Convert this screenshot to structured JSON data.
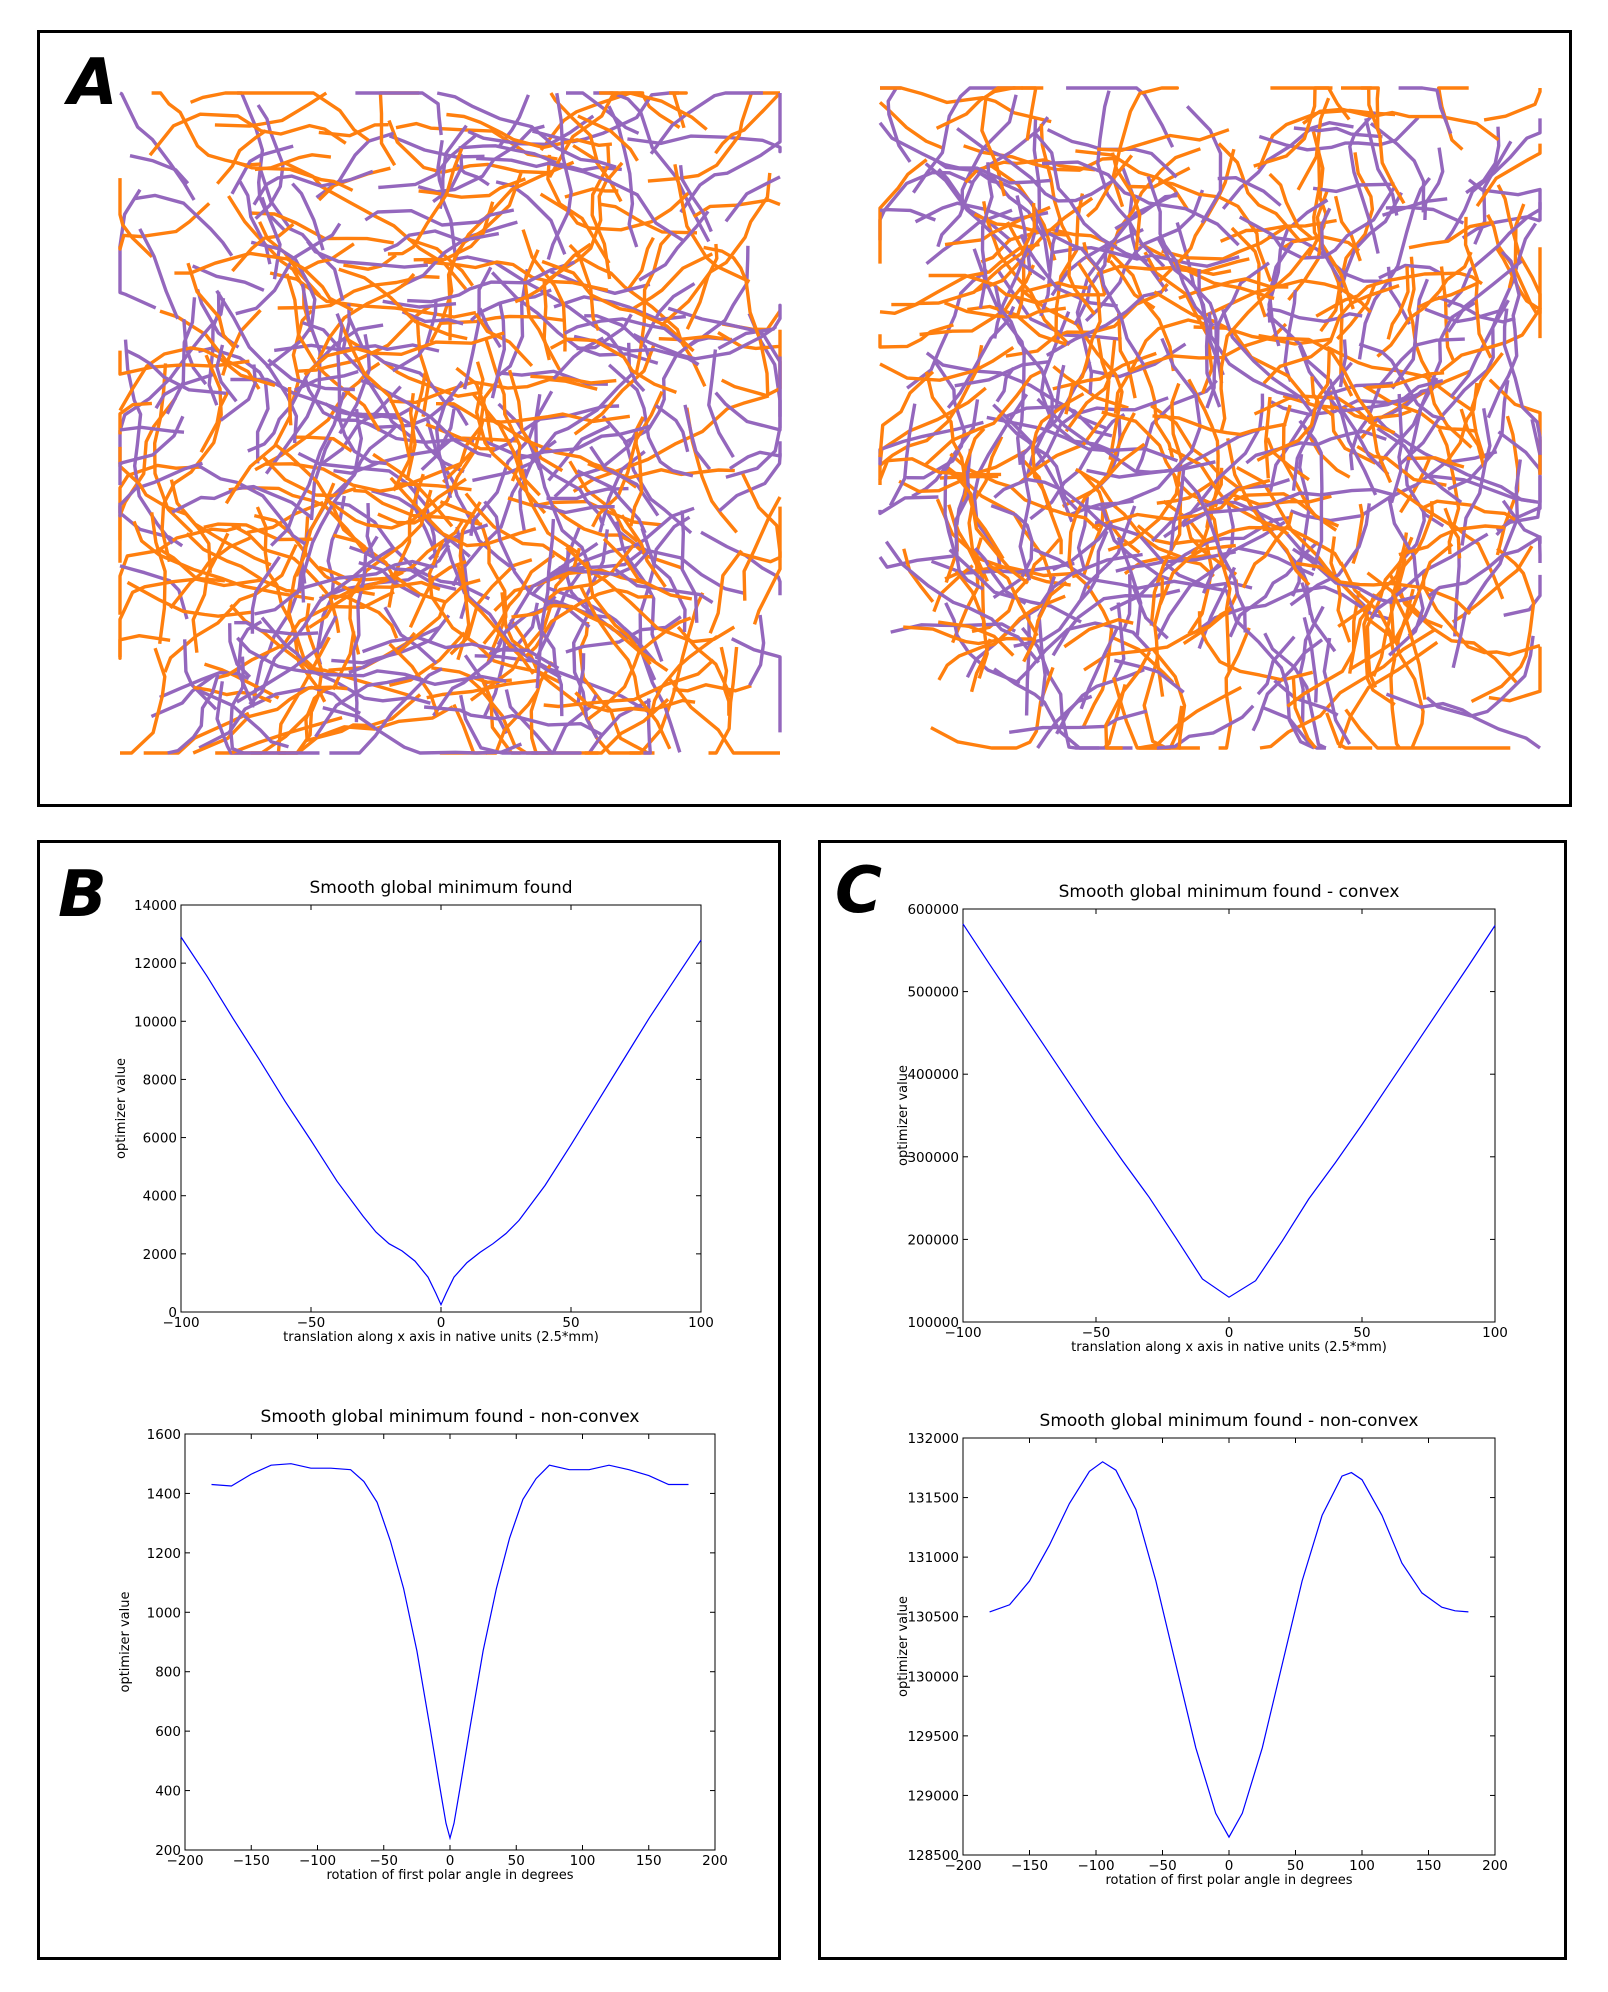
{
  "panels": {
    "a": {
      "label": "A"
    },
    "b": {
      "label": "B"
    },
    "c": {
      "label": "C"
    }
  },
  "colors": {
    "fiber_orange": "#ff7f0e",
    "fiber_purple": "#9467bd",
    "line_blue": "#0000ff"
  },
  "icons": {
    "panel_a": "tractography-fiber-bundles-image"
  },
  "chart_data": [
    {
      "id": "b_top",
      "type": "line",
      "title": "Smooth global minimum found",
      "xlabel": "translation along x axis in native units (2.5*mm)",
      "ylabel": "optimizer value",
      "xlim": [
        -100,
        100
      ],
      "ylim": [
        0,
        14000
      ],
      "xticks": [
        -100,
        -50,
        0,
        50,
        100
      ],
      "yticks": [
        0,
        2000,
        4000,
        6000,
        8000,
        10000,
        12000,
        14000
      ],
      "grid": false,
      "series": [
        {
          "x": [
            -100,
            -90,
            -80,
            -70,
            -60,
            -50,
            -40,
            -30,
            -25,
            -20,
            -15,
            -10,
            -5,
            -2,
            0,
            2,
            5,
            10,
            15,
            20,
            25,
            30,
            40,
            50,
            60,
            70,
            80,
            90,
            100
          ],
          "values": [
            12900,
            11550,
            10100,
            8700,
            7250,
            5900,
            4500,
            3300,
            2750,
            2350,
            2100,
            1750,
            1200,
            650,
            250,
            650,
            1200,
            1700,
            2050,
            2350,
            2700,
            3150,
            4350,
            5750,
            7200,
            8650,
            10100,
            11450,
            12800
          ]
        }
      ]
    },
    {
      "id": "b_bottom",
      "type": "line",
      "title": "Smooth global minimum found - non-convex",
      "xlabel": "rotation of first polar angle in degrees",
      "ylabel": "optimizer value",
      "xlim": [
        -200,
        200
      ],
      "ylim": [
        200,
        1600
      ],
      "xticks": [
        -200,
        -150,
        -100,
        -50,
        0,
        50,
        100,
        150,
        200
      ],
      "yticks": [
        200,
        400,
        600,
        800,
        1000,
        1200,
        1400,
        1600
      ],
      "grid": false,
      "series": [
        {
          "x": [
            -180,
            -165,
            -150,
            -135,
            -120,
            -105,
            -90,
            -75,
            -65,
            -55,
            -45,
            -35,
            -25,
            -15,
            -8,
            -3,
            0,
            3,
            8,
            15,
            25,
            35,
            45,
            55,
            65,
            75,
            90,
            105,
            120,
            135,
            150,
            165,
            180
          ],
          "values": [
            1430,
            1425,
            1465,
            1495,
            1500,
            1485,
            1485,
            1480,
            1440,
            1370,
            1240,
            1080,
            870,
            610,
            420,
            290,
            240,
            290,
            420,
            610,
            870,
            1080,
            1250,
            1380,
            1450,
            1495,
            1480,
            1480,
            1495,
            1480,
            1460,
            1430,
            1430
          ]
        }
      ]
    },
    {
      "id": "c_top",
      "type": "line",
      "title": "Smooth global minimum found - convex",
      "xlabel": "translation along x axis in native units (2.5*mm)",
      "ylabel": "optimizer value",
      "xlim": [
        -100,
        100
      ],
      "ylim": [
        100000,
        600000
      ],
      "xticks": [
        -100,
        -50,
        0,
        50,
        100
      ],
      "yticks": [
        100000,
        200000,
        300000,
        400000,
        500000,
        600000
      ],
      "grid": false,
      "series": [
        {
          "x": [
            -100,
            -90,
            -80,
            -70,
            -60,
            -50,
            -40,
            -30,
            -20,
            -10,
            0,
            10,
            20,
            30,
            40,
            50,
            60,
            70,
            80,
            90,
            100
          ],
          "values": [
            582000,
            533000,
            485000,
            437000,
            389000,
            341000,
            295000,
            251000,
            202000,
            152000,
            130000,
            150000,
            198000,
            249000,
            293000,
            339000,
            387000,
            435000,
            483000,
            531000,
            580000
          ]
        }
      ]
    },
    {
      "id": "c_bottom",
      "type": "line",
      "title": "Smooth global minimum found - non-convex",
      "xlabel": "rotation of first polar angle in degrees",
      "ylabel": "optimizer value",
      "xlim": [
        -200,
        200
      ],
      "ylim": [
        128500,
        132000
      ],
      "xticks": [
        -200,
        -150,
        -100,
        -50,
        0,
        50,
        100,
        150,
        200
      ],
      "yticks": [
        128500,
        129000,
        129500,
        130000,
        130500,
        131000,
        131500,
        132000
      ],
      "grid": false,
      "series": [
        {
          "x": [
            -180,
            -165,
            -150,
            -135,
            -120,
            -105,
            -95,
            -85,
            -70,
            -55,
            -40,
            -25,
            -10,
            0,
            10,
            25,
            40,
            55,
            70,
            85,
            92,
            100,
            115,
            130,
            145,
            160,
            170,
            180
          ],
          "values": [
            130540,
            130600,
            130800,
            131100,
            131450,
            131720,
            131800,
            131730,
            131400,
            130800,
            130100,
            129400,
            128850,
            128650,
            128850,
            129400,
            130100,
            130800,
            131350,
            131680,
            131710,
            131650,
            131350,
            130950,
            130700,
            130580,
            130550,
            130540
          ]
        }
      ]
    }
  ]
}
